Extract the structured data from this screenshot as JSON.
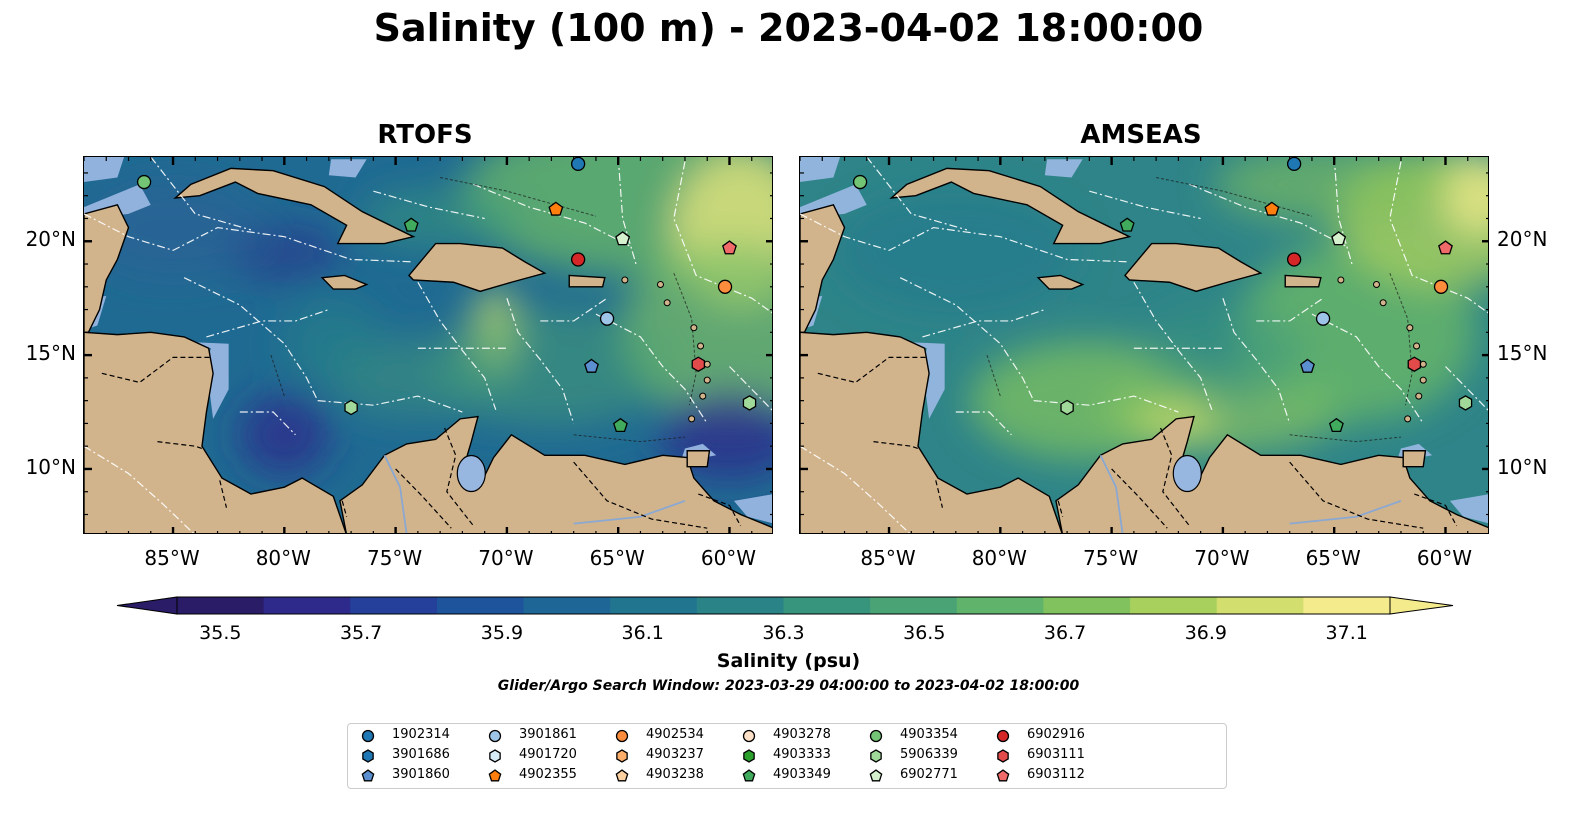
{
  "title": "Salinity (100 m) - 2023-04-02 18:00:00",
  "panels": [
    {
      "title": "RTOFS"
    },
    {
      "title": "AMSEAS"
    }
  ],
  "lon_ticks": [
    "85°W",
    "80°W",
    "75°W",
    "70°W",
    "65°W",
    "60°W"
  ],
  "lat_ticks": [
    "20°N",
    "15°N",
    "10°N"
  ],
  "colorbar": {
    "label": "Salinity (psu)",
    "ticks": [
      "35.5",
      "35.7",
      "35.9",
      "36.1",
      "36.3",
      "36.5",
      "36.7",
      "36.9",
      "37.1"
    ],
    "colors": [
      "#2a1c66",
      "#2d2a8c",
      "#24409a",
      "#1d549c",
      "#1e6696",
      "#22758f",
      "#2a8487",
      "#37947d",
      "#4aa374",
      "#5fb36b",
      "#82c25e",
      "#a8d05c",
      "#d2de6e",
      "#f3eb8c"
    ]
  },
  "search_window": "Glider/Argo Search Window: 2023-03-29 04:00:00 to 2023-04-02 18:00:00",
  "legend": [
    {
      "id": "1902314",
      "color": "#1f77b4",
      "shape": "circle"
    },
    {
      "id": "3901686",
      "color": "#1f77b4",
      "shape": "hexagon"
    },
    {
      "id": "3901860",
      "color": "#5b8fd0",
      "shape": "pentagon"
    },
    {
      "id": "3901861",
      "color": "#9ec5e8",
      "shape": "circle"
    },
    {
      "id": "4901720",
      "color": "#d8ecf8",
      "shape": "hexagon"
    },
    {
      "id": "4902355",
      "color": "#ff7f0e",
      "shape": "pentagon"
    },
    {
      "id": "4902534",
      "color": "#fd8d3c",
      "shape": "circle"
    },
    {
      "id": "4903237",
      "color": "#fdae6b",
      "shape": "hexagon"
    },
    {
      "id": "4903238",
      "color": "#fdd0a2",
      "shape": "pentagon"
    },
    {
      "id": "4903278",
      "color": "#fde0c8",
      "shape": "circle"
    },
    {
      "id": "4903333",
      "color": "#2ca02c",
      "shape": "hexagon"
    },
    {
      "id": "4903349",
      "color": "#41ab5d",
      "shape": "pentagon"
    },
    {
      "id": "4903354",
      "color": "#74c476",
      "shape": "circle"
    },
    {
      "id": "5906339",
      "color": "#a1d99b",
      "shape": "hexagon"
    },
    {
      "id": "6902771",
      "color": "#d4f0cc",
      "shape": "pentagon"
    },
    {
      "id": "6902916",
      "color": "#d62728",
      "shape": "circle"
    },
    {
      "id": "6903111",
      "color": "#e34a4a",
      "shape": "hexagon"
    },
    {
      "id": "6903112",
      "color": "#f06a6a",
      "shape": "pentagon"
    }
  ],
  "markers": [
    {
      "id": "1902314",
      "lon": -66.8,
      "lat": 23.4
    },
    {
      "id": "4903354",
      "lon": -86.3,
      "lat": 22.6
    },
    {
      "id": "4903349",
      "lon": -74.3,
      "lat": 20.7
    },
    {
      "id": "4902355",
      "lon": -67.8,
      "lat": 21.4
    },
    {
      "id": "6902771",
      "lon": -64.8,
      "lat": 20.1
    },
    {
      "id": "6903112",
      "lon": -60.0,
      "lat": 19.7
    },
    {
      "id": "6902916",
      "lon": -66.8,
      "lat": 19.2
    },
    {
      "id": "4902534",
      "lon": -60.2,
      "lat": 18.0
    },
    {
      "id": "3901861",
      "lon": -65.5,
      "lat": 16.6
    },
    {
      "id": "6903111",
      "lon": -61.4,
      "lat": 14.6
    },
    {
      "id": "3901860",
      "lon": -66.2,
      "lat": 14.5
    },
    {
      "id": "5906339",
      "lon": -77.0,
      "lat": 12.7
    },
    {
      "id": "4903349",
      "lon": -64.9,
      "lat": 11.9
    },
    {
      "id": "5906339",
      "lon": -59.1,
      "lat": 12.9
    }
  ]
}
